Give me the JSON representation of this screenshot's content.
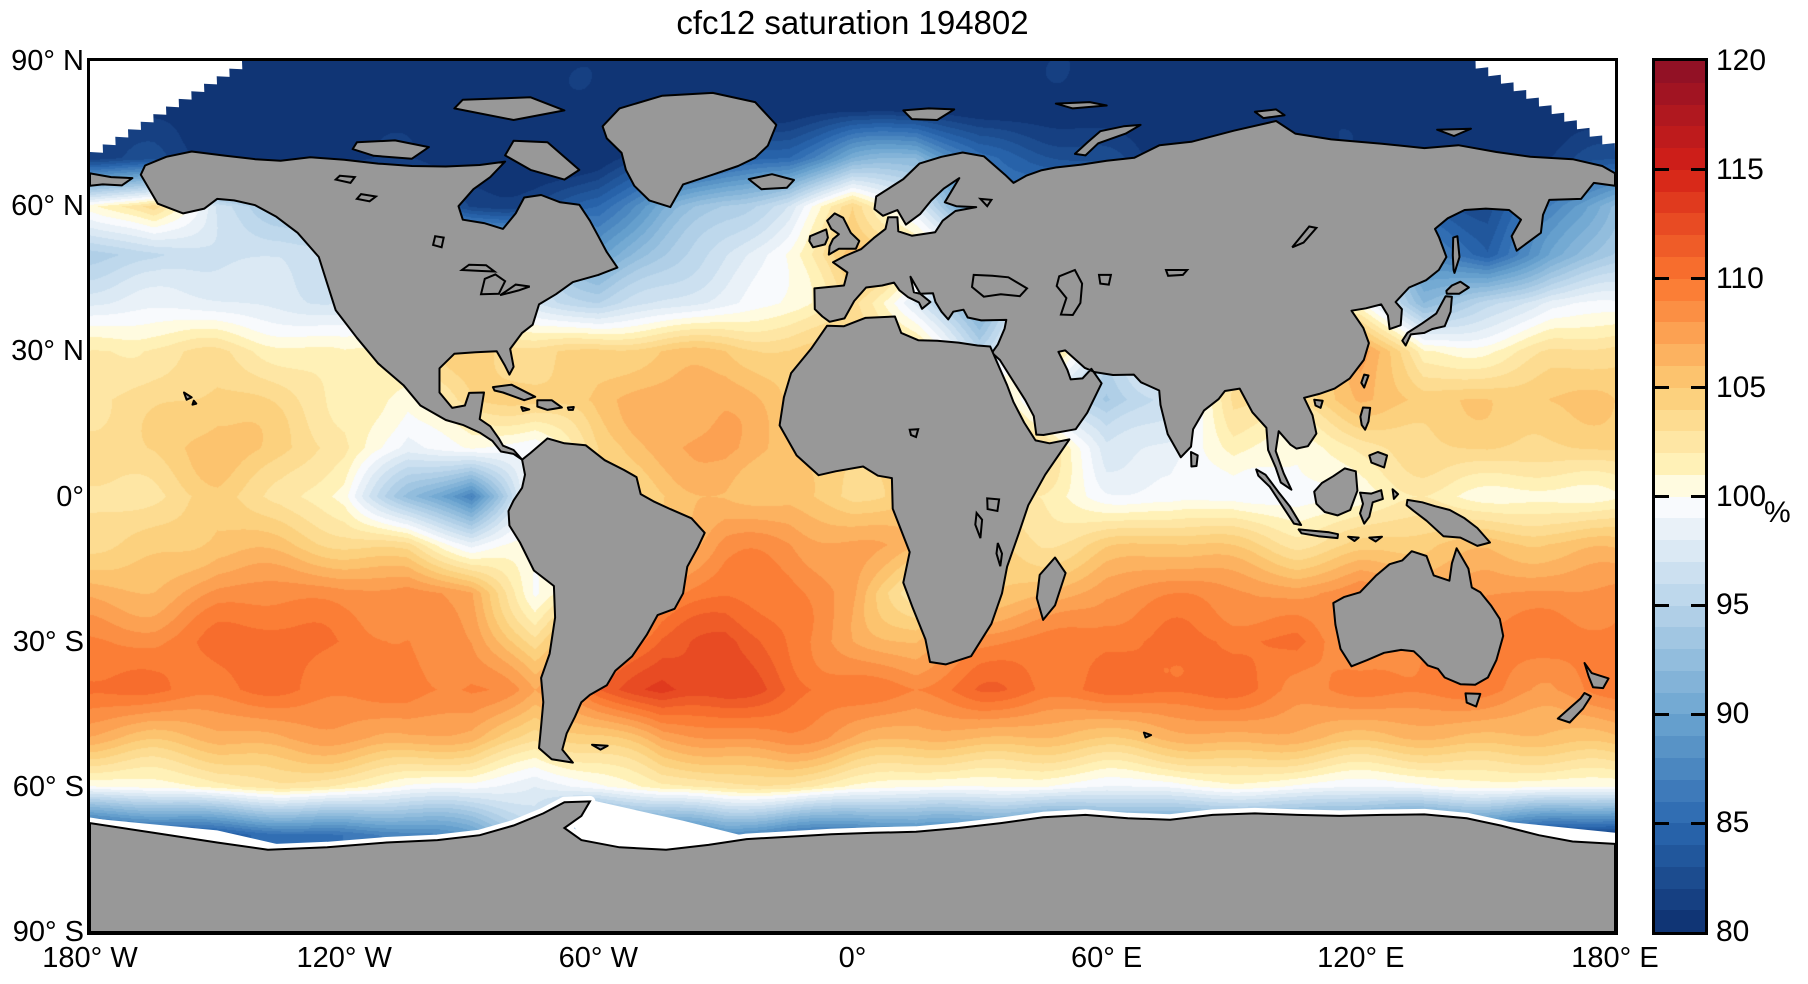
{
  "title": "cfc12 saturation 194802",
  "colorbar": {
    "unit_label": "%",
    "tick_labels": [
      "120",
      "115",
      "110",
      "105",
      "100",
      "95",
      "90",
      "85",
      "80"
    ],
    "tick_values": [
      120,
      115,
      110,
      105,
      100,
      95,
      90,
      85,
      80
    ],
    "min": 80,
    "max": 120,
    "segments": 40
  },
  "axes": {
    "lat_tick_labels": [
      "90° N",
      "60° N",
      "30° N",
      "0°",
      "30° S",
      "60° S",
      "90° S"
    ],
    "lon_tick_labels": [
      "180° W",
      "120° W",
      "60° W",
      "0°",
      "60° E",
      "120° E",
      "180° E"
    ]
  },
  "chart_data": {
    "type": "heatmap",
    "title": "cfc12 saturation 194802",
    "units": "%",
    "projection": "equirectangular",
    "lon_ticks_deg": [
      -180,
      -120,
      -60,
      0,
      60,
      120,
      180
    ],
    "lat_ticks_deg": [
      90,
      60,
      30,
      0,
      -30,
      -60,
      -90
    ],
    "colorbar_range": [
      80,
      120
    ],
    "land_color": "#989898",
    "coast_color": "#000000",
    "no_data_color": "#ffffff",
    "background_color": "#ffffff",
    "colormap_stops": [
      [
        80,
        "#0D2F6E"
      ],
      [
        85,
        "#2A68B0"
      ],
      [
        90,
        "#6CA5D0"
      ],
      [
        95,
        "#B7D4EA"
      ],
      [
        99,
        "#F0F5FA"
      ],
      [
        100,
        "#FFFFFF"
      ],
      [
        101,
        "#FFF6C0"
      ],
      [
        105,
        "#FCCC75"
      ],
      [
        110,
        "#FB752F"
      ],
      [
        115,
        "#D42017"
      ],
      [
        120,
        "#8B0F26"
      ]
    ],
    "grid": {
      "lons": [
        -180,
        -165,
        -150,
        -135,
        -120,
        -105,
        -90,
        -75,
        -60,
        -45,
        -30,
        -15,
        0,
        15,
        30,
        45,
        60,
        75,
        90,
        105,
        120,
        135,
        150,
        165,
        180
      ],
      "lats": [
        90,
        80,
        70,
        60,
        50,
        40,
        30,
        20,
        10,
        0,
        -10,
        -20,
        -30,
        -40,
        -50,
        -60,
        -70,
        -80,
        -90
      ],
      "values": [
        [
          80,
          80,
          80,
          80,
          80,
          80,
          80,
          80,
          80,
          80,
          80,
          80,
          80,
          80,
          80,
          80,
          80,
          80,
          80,
          80,
          80,
          80,
          80,
          80,
          80
        ],
        [
          80,
          80,
          80,
          80,
          80,
          80,
          80,
          80,
          80,
          80,
          80,
          80,
          80,
          80,
          80,
          80,
          80,
          80,
          80,
          80,
          80,
          80,
          80,
          80,
          80
        ],
        [
          82,
          82,
          81,
          80,
          80,
          80,
          80,
          80,
          80,
          82,
          84,
          85,
          90,
          92,
          86,
          84,
          82,
          80,
          80,
          80,
          80,
          80,
          80,
          81,
          82
        ],
        [
          101,
          104,
          96,
          94,
          92,
          84,
          82,
          83,
          85,
          90,
          94,
          97,
          104,
          98,
          88,
          88,
          86,
          85,
          85,
          85,
          85,
          84,
          83,
          86,
          92
        ],
        [
          95,
          95,
          96,
          97,
          97,
          96,
          96,
          96,
          89,
          93,
          97,
          101,
          106,
          103,
          100,
          100,
          101,
          101,
          101,
          101,
          100,
          88,
          84,
          90,
          94
        ],
        [
          98,
          98,
          98,
          98,
          98,
          99,
          100,
          97,
          95,
          97,
          99,
          101,
          103,
          97,
          90,
          102,
          103,
          103,
          103,
          103,
          99,
          92,
          96,
          99,
          99
        ],
        [
          102,
          103,
          103,
          102,
          101,
          102,
          104,
          104,
          105,
          105,
          105,
          104,
          104,
          102,
          96,
          105,
          96,
          100,
          103,
          102,
          108,
          101,
          102,
          103,
          103
        ],
        [
          104,
          104,
          104,
          103,
          102,
          100,
          104,
          105,
          106,
          106,
          106,
          105,
          105,
          105,
          105,
          98,
          93,
          96,
          103,
          104,
          106,
          105,
          105,
          105,
          104
        ],
        [
          104,
          104,
          105,
          104,
          103,
          99,
          100,
          99,
          104,
          106,
          107,
          106,
          105,
          105,
          104,
          104,
          97,
          98,
          102,
          101,
          102,
          103,
          104,
          104,
          104
        ],
        [
          102,
          103,
          104,
          103,
          101,
          93,
          86,
          101,
          104,
          105,
          106,
          106,
          104,
          104,
          103,
          102,
          100,
          99,
          100,
          99,
          100,
          101,
          101,
          101,
          101
        ],
        [
          104,
          105,
          106,
          105,
          104,
          103,
          98,
          100,
          104,
          106,
          108,
          108,
          107,
          106,
          104,
          104,
          105,
          105,
          104,
          103,
          104,
          105,
          106,
          106,
          105
        ],
        [
          107,
          107,
          108,
          108,
          108,
          109,
          107,
          100,
          104,
          108,
          109,
          109,
          108,
          102,
          105,
          106,
          108,
          108,
          108,
          108,
          110,
          107,
          108,
          108,
          108
        ],
        [
          109,
          109,
          110,
          110,
          110,
          110,
          108,
          103,
          108,
          111,
          112,
          110,
          108,
          106,
          108,
          109,
          110,
          110,
          110,
          111,
          108,
          108,
          109,
          110,
          110
        ],
        [
          110,
          110,
          110,
          110,
          110,
          110,
          109,
          106,
          111,
          114,
          113,
          111,
          110,
          109,
          110,
          110,
          111,
          111,
          110,
          109,
          109,
          109,
          109,
          109,
          110
        ],
        [
          106,
          106,
          107,
          107,
          107,
          107,
          106,
          103,
          105,
          108,
          108,
          108,
          107,
          106,
          106,
          106,
          106,
          106,
          106,
          106,
          106,
          106,
          106,
          106,
          106
        ],
        [
          100,
          101,
          102,
          102,
          101,
          100,
          100,
          98,
          100,
          102,
          102,
          102,
          101,
          101,
          100,
          100,
          99,
          99,
          100,
          100,
          100,
          100,
          100,
          100,
          100
        ],
        [
          82,
          83,
          84,
          85,
          86,
          88,
          90,
          95,
          84,
          86,
          88,
          86,
          86,
          88,
          86,
          85,
          86,
          88,
          86,
          88,
          86,
          84,
          83,
          82,
          82
        ],
        [
          86,
          86,
          86,
          86,
          86,
          86,
          86,
          86,
          86,
          86,
          86,
          86,
          86,
          86,
          86,
          86,
          86,
          86,
          86,
          86,
          86,
          86,
          86,
          86,
          86
        ],
        [
          86,
          86,
          86,
          86,
          86,
          86,
          86,
          86,
          86,
          86,
          86,
          86,
          86,
          86,
          86,
          86,
          86,
          86,
          86,
          86,
          86,
          86,
          86,
          86,
          86
        ]
      ]
    }
  }
}
